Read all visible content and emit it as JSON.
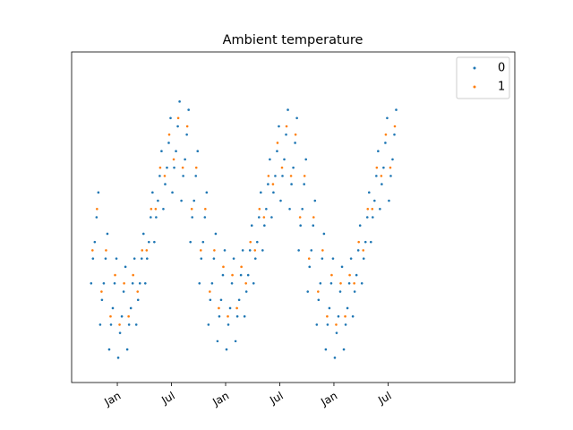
{
  "chart_data": {
    "type": "scatter",
    "title": "Ambient temperature",
    "categories": [
      null,
      null,
      null,
      "Jan",
      null,
      null,
      null,
      null,
      null,
      "Jul",
      null,
      null,
      null,
      null,
      null,
      "Jan",
      null,
      null,
      null,
      null,
      null,
      "Jul",
      null,
      null,
      null,
      null,
      null,
      "Jan",
      null,
      null,
      null,
      null,
      null,
      "Jul"
    ],
    "ylim": [
      -5,
      35
    ],
    "legend": "upper right",
    "series": [
      {
        "name": "0",
        "color": "#1f77b4",
        "values": [
          [
            7,
            10,
            12,
            15,
            18
          ],
          [
            2,
            5,
            7,
            10,
            13
          ],
          [
            -1,
            2,
            4,
            7,
            10
          ],
          [
            -2,
            1,
            3,
            6,
            9
          ],
          [
            -1,
            2,
            4,
            7,
            10
          ],
          [
            2,
            5,
            7,
            10,
            13
          ],
          [
            7,
            10,
            12,
            15,
            18
          ],
          [
            12,
            15,
            17,
            20,
            23
          ],
          [
            16,
            19,
            21,
            24,
            27
          ],
          [
            18,
            21,
            23,
            26,
            29
          ],
          [
            17,
            20,
            22,
            25,
            28
          ],
          [
            12,
            15,
            17,
            20,
            23
          ],
          [
            7,
            10,
            12,
            15,
            18
          ],
          [
            2,
            5,
            7,
            10,
            13
          ],
          [
            0,
            3,
            5,
            8,
            11
          ],
          [
            -1,
            2,
            4,
            7,
            10
          ],
          [
            0,
            3,
            5,
            8,
            11
          ],
          [
            3,
            6,
            8,
            11,
            14
          ],
          [
            7,
            10,
            12,
            15,
            18
          ],
          [
            11,
            14,
            16,
            19,
            22
          ],
          [
            15,
            18,
            20,
            23,
            26
          ],
          [
            17,
            20,
            22,
            25,
            28
          ],
          [
            16,
            19,
            21,
            24,
            27
          ],
          [
            11,
            14,
            16,
            19,
            22
          ],
          [
            6,
            9,
            11,
            14,
            17
          ],
          [
            2,
            5,
            7,
            10,
            13
          ],
          [
            -1,
            2,
            4,
            7,
            10
          ],
          [
            -2,
            1,
            3,
            6,
            9
          ],
          [
            -1,
            2,
            4,
            7,
            10
          ],
          [
            3,
            6,
            8,
            11,
            14
          ],
          [
            7,
            10,
            12,
            15,
            18
          ],
          [
            12,
            15,
            17,
            20,
            23
          ],
          [
            16,
            19,
            21,
            24,
            27
          ],
          [
            17,
            20,
            22,
            25,
            28
          ]
        ]
      },
      {
        "name": "1",
        "color": "#ff7f0e",
        "values": [
          [
            11,
            16
          ],
          [
            6,
            11
          ],
          [
            3,
            8
          ],
          [
            2,
            7
          ],
          [
            3,
            8
          ],
          [
            6,
            11
          ],
          [
            11,
            16
          ],
          [
            16,
            21
          ],
          [
            20,
            25
          ],
          [
            22,
            27
          ],
          [
            21,
            26
          ],
          [
            16,
            21
          ],
          [
            11,
            16
          ],
          [
            6,
            11
          ],
          [
            4,
            9
          ],
          [
            3,
            8
          ],
          [
            4,
            9
          ],
          [
            7,
            12
          ],
          [
            11,
            16
          ],
          [
            15,
            20
          ],
          [
            19,
            24
          ],
          [
            21,
            26
          ],
          [
            20,
            25
          ],
          [
            15,
            20
          ],
          [
            10,
            15
          ],
          [
            6,
            11
          ],
          [
            3,
            8
          ],
          [
            2,
            7
          ],
          [
            3,
            8
          ],
          [
            7,
            12
          ],
          [
            11,
            16
          ],
          [
            16,
            21
          ],
          [
            20,
            25
          ],
          [
            21,
            26
          ]
        ]
      }
    ]
  }
}
